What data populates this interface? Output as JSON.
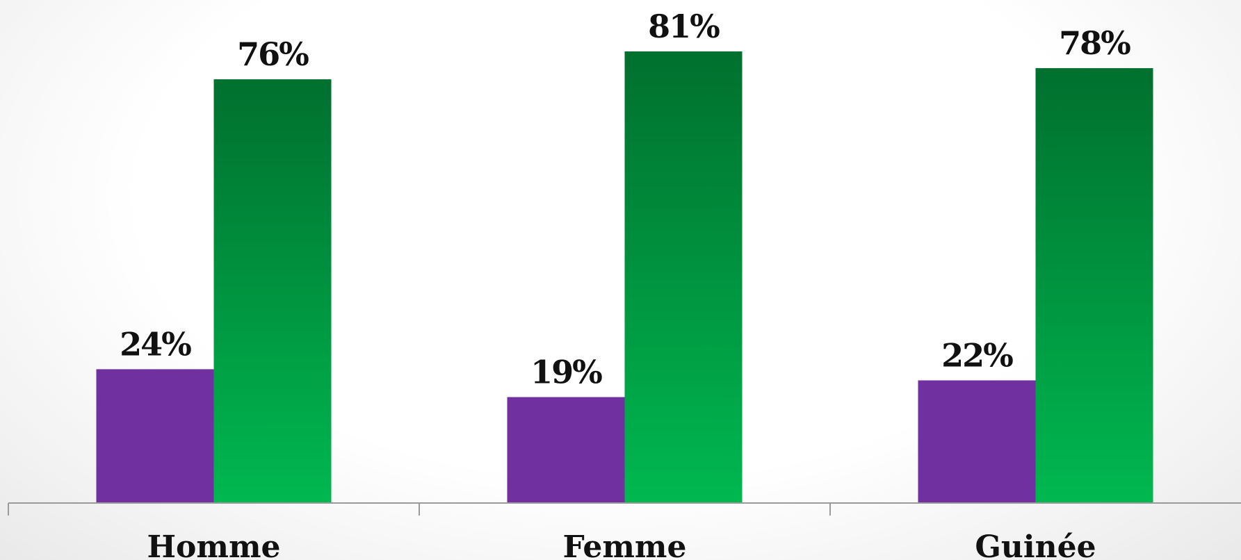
{
  "chart_data": {
    "type": "bar",
    "categories": [
      "Homme",
      "Femme",
      "Guinée"
    ],
    "series": [
      {
        "values": [
          24,
          19,
          22
        ],
        "color": "#7030a0"
      },
      {
        "values": [
          76,
          81,
          78
        ],
        "color_top": "#00702e",
        "color_bottom": "#00b850"
      }
    ],
    "value_suffix": "%",
    "ylim": [
      0,
      81
    ],
    "grid": false,
    "legend": "none",
    "title": "",
    "xlabel": "",
    "ylabel": ""
  }
}
